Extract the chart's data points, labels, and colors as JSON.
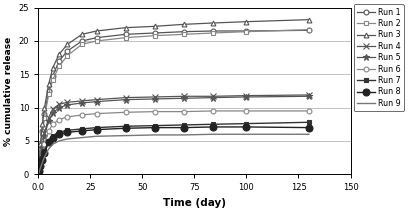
{
  "title": "",
  "xlabel": "Time (day)",
  "ylabel": "% cumulative release",
  "xlim": [
    0,
    150
  ],
  "ylim": [
    0,
    25
  ],
  "xticks": [
    0,
    25.0,
    50.0,
    75.0,
    100.0,
    125.0,
    150.0
  ],
  "yticks": [
    0.0,
    5.0,
    10.0,
    15.0,
    20.0,
    25.0
  ],
  "runs": {
    "Run 1": {
      "color": "#555555",
      "marker": "o",
      "markerfacecolor": "white",
      "markersize": 3.5,
      "linewidth": 0.9,
      "x": [
        0,
        0.5,
        1,
        2,
        3,
        5,
        7,
        10,
        14,
        21,
        28,
        42,
        56,
        70,
        84,
        100,
        130
      ],
      "y": [
        0,
        2.0,
        4.0,
        6.5,
        9.0,
        12.5,
        14.8,
        17.0,
        18.5,
        20.0,
        20.5,
        21.0,
        21.2,
        21.4,
        21.5,
        21.5,
        21.6
      ]
    },
    "Run 2": {
      "color": "#888888",
      "marker": "s",
      "markerfacecolor": "white",
      "markersize": 3.5,
      "linewidth": 0.9,
      "x": [
        0,
        0.5,
        1,
        2,
        3,
        5,
        7,
        10,
        14,
        21,
        28,
        42,
        56,
        70,
        84,
        100,
        130
      ],
      "y": [
        0,
        1.8,
        3.8,
        6.2,
        8.5,
        12.0,
        14.2,
        16.2,
        17.8,
        19.5,
        20.0,
        20.5,
        20.8,
        21.0,
        21.2,
        21.4,
        21.7
      ]
    },
    "Run 3": {
      "color": "#555555",
      "marker": "^",
      "markerfacecolor": "white",
      "markersize": 3.5,
      "linewidth": 0.9,
      "x": [
        0,
        0.5,
        1,
        2,
        3,
        5,
        7,
        10,
        14,
        21,
        28,
        42,
        56,
        70,
        84,
        100,
        130
      ],
      "y": [
        0,
        2.2,
        4.5,
        7.5,
        10.0,
        13.5,
        16.0,
        18.0,
        19.5,
        21.0,
        21.5,
        22.0,
        22.2,
        22.5,
        22.7,
        22.9,
        23.2
      ]
    },
    "Run 4": {
      "color": "#555555",
      "marker": "x",
      "markerfacecolor": "#555555",
      "markersize": 4,
      "linewidth": 0.9,
      "x": [
        0,
        0.5,
        1,
        2,
        3,
        5,
        7,
        10,
        14,
        21,
        28,
        42,
        56,
        70,
        84,
        100,
        130
      ],
      "y": [
        0,
        1.2,
        2.5,
        4.5,
        6.2,
        8.5,
        9.8,
        10.5,
        10.8,
        11.0,
        11.2,
        11.5,
        11.6,
        11.7,
        11.7,
        11.8,
        11.9
      ]
    },
    "Run 5": {
      "color": "#555555",
      "marker": "*",
      "markerfacecolor": "#555555",
      "markersize": 5,
      "linewidth": 0.9,
      "x": [
        0,
        0.5,
        1,
        2,
        3,
        5,
        7,
        10,
        14,
        21,
        28,
        42,
        56,
        70,
        84,
        100,
        130
      ],
      "y": [
        0,
        1.0,
        2.2,
        4.0,
        5.8,
        8.0,
        9.2,
        10.0,
        10.4,
        10.7,
        10.9,
        11.2,
        11.3,
        11.4,
        11.5,
        11.6,
        11.7
      ]
    },
    "Run 6": {
      "color": "#888888",
      "marker": "o",
      "markerfacecolor": "white",
      "markersize": 3.5,
      "linewidth": 0.9,
      "x": [
        0,
        0.5,
        1,
        2,
        3,
        5,
        7,
        10,
        14,
        21,
        28,
        42,
        56,
        70,
        84,
        100,
        130
      ],
      "y": [
        0,
        0.8,
        1.8,
        3.2,
        4.5,
        6.5,
        7.5,
        8.2,
        8.6,
        8.9,
        9.1,
        9.3,
        9.4,
        9.4,
        9.5,
        9.5,
        9.5
      ]
    },
    "Run 7": {
      "color": "#333333",
      "marker": "s",
      "markerfacecolor": "#333333",
      "markersize": 3.5,
      "linewidth": 1.0,
      "x": [
        0,
        0.5,
        1,
        2,
        3,
        5,
        7,
        10,
        14,
        21,
        28,
        42,
        56,
        70,
        84,
        100,
        130
      ],
      "y": [
        0,
        0.6,
        1.3,
        2.4,
        3.5,
        5.0,
        5.8,
        6.3,
        6.6,
        6.8,
        7.0,
        7.2,
        7.3,
        7.4,
        7.5,
        7.6,
        7.8
      ]
    },
    "Run 8": {
      "color": "#222222",
      "marker": "o",
      "markerfacecolor": "#222222",
      "markersize": 5,
      "linewidth": 1.0,
      "x": [
        0,
        0.5,
        1,
        2,
        3,
        5,
        7,
        10,
        14,
        21,
        28,
        42,
        56,
        70,
        84,
        100,
        130
      ],
      "y": [
        0,
        0.5,
        1.2,
        2.2,
        3.2,
        4.8,
        5.5,
        6.0,
        6.3,
        6.5,
        6.7,
        6.9,
        7.0,
        7.0,
        7.1,
        7.1,
        7.0
      ]
    },
    "Run 9": {
      "color": "#777777",
      "marker": "None",
      "markerfacecolor": "None",
      "markersize": 3.5,
      "linewidth": 1.0,
      "x": [
        0,
        0.5,
        1,
        2,
        3,
        5,
        7,
        10,
        14,
        21,
        28,
        42,
        56,
        70,
        84,
        100,
        130
      ],
      "y": [
        0,
        0.4,
        0.9,
        1.8,
        2.6,
        3.8,
        4.5,
        5.0,
        5.3,
        5.5,
        5.7,
        5.8,
        5.9,
        5.9,
        6.0,
        6.0,
        6.0
      ]
    }
  }
}
